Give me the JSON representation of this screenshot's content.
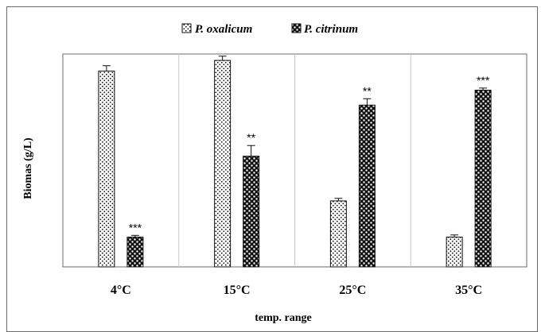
{
  "chart_data": {
    "type": "bar",
    "title": "",
    "xlabel": "temp. range",
    "ylabel": "Biomas (g/L)",
    "categories": [
      "4°C",
      "15°C",
      "25°C",
      "35°C"
    ],
    "series": [
      {
        "name": "P. oxalicum",
        "values": [
          9.2,
          9.7,
          3.1,
          1.4
        ],
        "errors": [
          0.25,
          0.2,
          0.12,
          0.1
        ],
        "significance": [
          "",
          "",
          "",
          ""
        ]
      },
      {
        "name": "P. citrinum",
        "values": [
          1.4,
          5.2,
          7.6,
          8.3
        ],
        "errors": [
          0.08,
          0.5,
          0.3,
          0.1
        ],
        "significance": [
          "***",
          "**",
          "**",
          "***"
        ]
      }
    ],
    "ylim": [
      0,
      10
    ],
    "grid": false,
    "category_separators": true,
    "legend_position": "top-center",
    "y_tick_labels_shown": false
  },
  "colors": {
    "pattern_ink": "#111111",
    "axis": "#6b6b6b",
    "separator": "#c8c8c8"
  }
}
